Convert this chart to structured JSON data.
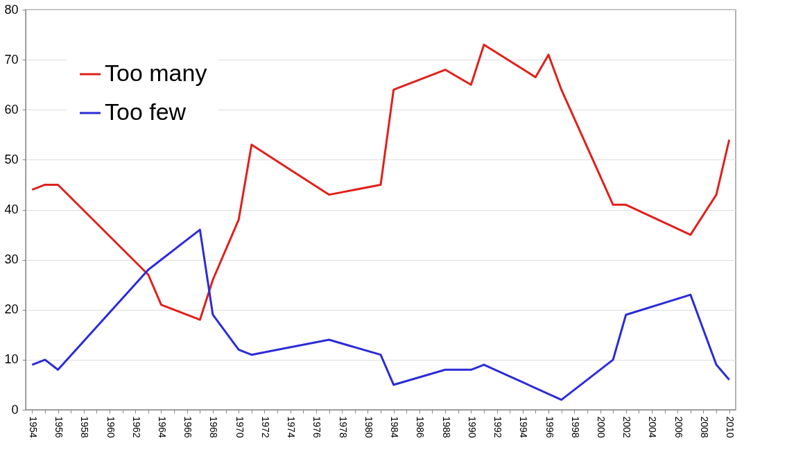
{
  "chart_data": {
    "type": "line",
    "categories": [
      "1954",
      null,
      "1956",
      null,
      "1958",
      null,
      "1960",
      null,
      "1962",
      null,
      "1964",
      null,
      "1966",
      null,
      "1968",
      null,
      "1970",
      null,
      "1972",
      null,
      "1974",
      null,
      "1976",
      null,
      "1978",
      null,
      "1980",
      null,
      "1984",
      null,
      "1986",
      null,
      "1988",
      null,
      "1990",
      null,
      "1992",
      null,
      "1994",
      null,
      "1996",
      null,
      "1998",
      null,
      "2000",
      null,
      "2002",
      null,
      "2004",
      null,
      "2006",
      null,
      "2008",
      null,
      "2010"
    ],
    "series": [
      {
        "name": "Too many",
        "color": "#e0201b",
        "values": [
          44,
          45,
          45,
          null,
          null,
          null,
          null,
          null,
          null,
          27,
          21,
          null,
          null,
          18,
          26,
          null,
          38,
          53,
          null,
          null,
          null,
          null,
          null,
          43,
          null,
          null,
          null,
          45,
          64,
          null,
          null,
          null,
          68,
          null,
          65,
          73,
          null,
          null,
          null,
          66.5,
          71,
          64,
          null,
          null,
          null,
          41,
          41,
          null,
          null,
          null,
          null,
          35,
          null,
          43,
          54
        ]
      },
      {
        "name": "Too few",
        "color": "#2b2bd9",
        "values": [
          9,
          10,
          8,
          null,
          null,
          null,
          null,
          null,
          null,
          28,
          null,
          null,
          null,
          36,
          19,
          null,
          12,
          11,
          null,
          null,
          null,
          null,
          null,
          14,
          null,
          null,
          null,
          11,
          5,
          null,
          null,
          null,
          8,
          null,
          8,
          9,
          null,
          null,
          null,
          null,
          null,
          2,
          null,
          null,
          null,
          10,
          19,
          null,
          null,
          null,
          null,
          23,
          null,
          9,
          6
        ]
      }
    ],
    "ylim": [
      0,
      80
    ],
    "yticks": [
      0,
      10,
      20,
      30,
      40,
      50,
      60,
      70,
      80
    ],
    "grid": "y",
    "legend": "top left",
    "marker": "none",
    "line_style": "solid"
  }
}
